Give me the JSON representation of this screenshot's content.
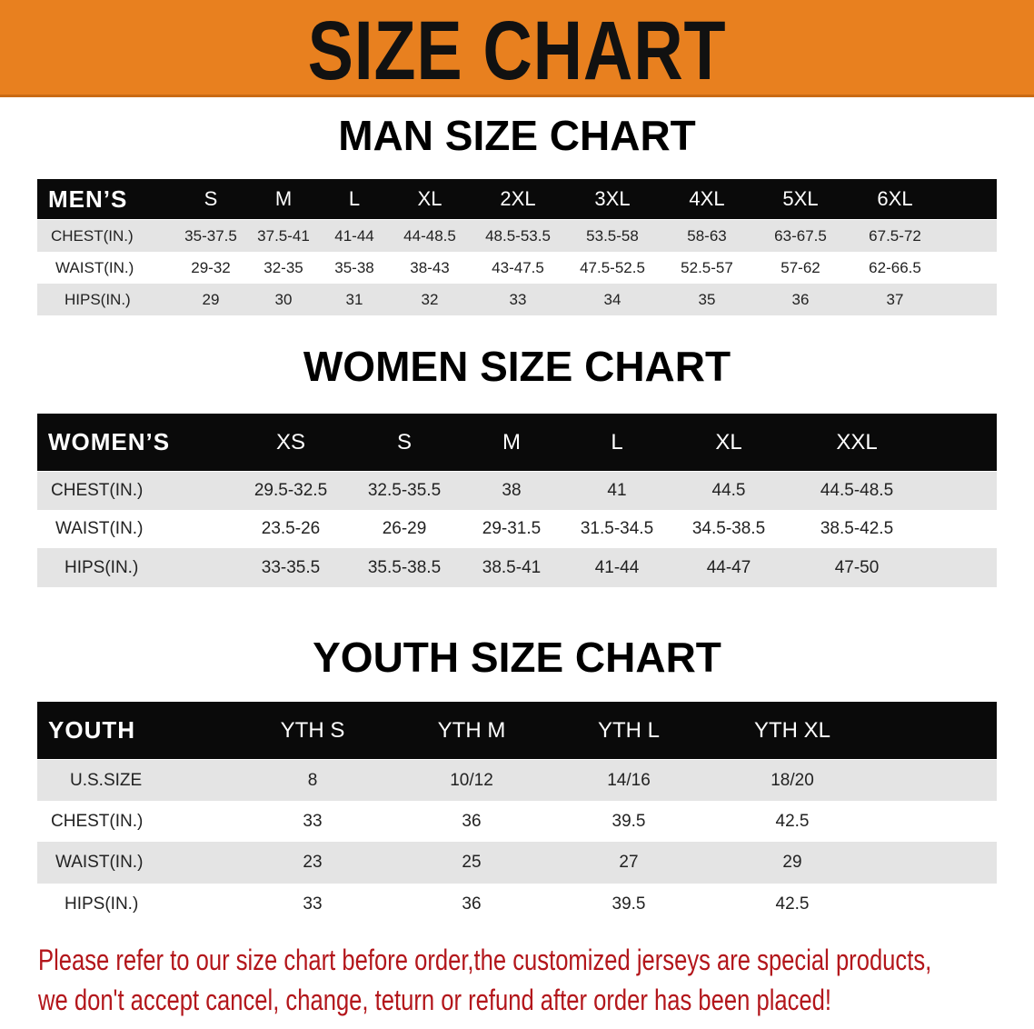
{
  "banner_title": "SIZE CHART",
  "accent_color": "#e8801f",
  "men": {
    "title": "MAN SIZE CHART",
    "corner": "MEN’S",
    "sizes": [
      "S",
      "M",
      "L",
      "XL",
      "2XL",
      "3XL",
      "4XL",
      "5XL",
      "6XL"
    ],
    "rows": [
      {
        "label": "CHEST(IN.)",
        "values": [
          "35-37.5",
          "37.5-41",
          "41-44",
          "44-48.5",
          "48.5-53.5",
          "53.5-58",
          "58-63",
          "63-67.5",
          "67.5-72"
        ]
      },
      {
        "label": "WAIST(IN.)",
        "values": [
          "29-32",
          "32-35",
          "35-38",
          "38-43",
          "43-47.5",
          "47.5-52.5",
          "52.5-57",
          "57-62",
          "62-66.5"
        ]
      },
      {
        "label": "HIPS(IN.)",
        "values": [
          "29",
          "30",
          "31",
          "32",
          "33",
          "34",
          "35",
          "36",
          "37"
        ]
      }
    ]
  },
  "women": {
    "title": "WOMEN SIZE CHART",
    "corner": "WOMEN’S",
    "sizes": [
      "XS",
      "S",
      "M",
      "L",
      "XL",
      "XXL"
    ],
    "rows": [
      {
        "label": "CHEST(IN.)",
        "values": [
          "29.5-32.5",
          "32.5-35.5",
          "38",
          "41",
          "44.5",
          "44.5-48.5"
        ]
      },
      {
        "label": "WAIST(IN.)",
        "values": [
          "23.5-26",
          "26-29",
          "29-31.5",
          "31.5-34.5",
          "34.5-38.5",
          "38.5-42.5"
        ]
      },
      {
        "label": "HIPS(IN.)",
        "values": [
          "33-35.5",
          "35.5-38.5",
          "38.5-41",
          "41-44",
          "44-47",
          "47-50"
        ]
      }
    ]
  },
  "youth": {
    "title": "YOUTH SIZE CHART",
    "corner": "YOUTH",
    "sizes": [
      "YTH S",
      "YTH M",
      "YTH L",
      "YTH XL"
    ],
    "rows": [
      {
        "label": "U.S.SIZE",
        "values": [
          "8",
          "10/12",
          "14/16",
          "18/20"
        ]
      },
      {
        "label": "CHEST(IN.)",
        "values": [
          "33",
          "36",
          "39.5",
          "42.5"
        ]
      },
      {
        "label": "WAIST(IN.)",
        "values": [
          "23",
          "25",
          "27",
          "29"
        ]
      },
      {
        "label": "HIPS(IN.)",
        "values": [
          "33",
          "36",
          "39.5",
          "42.5"
        ]
      }
    ]
  },
  "notice": {
    "line1": "Please refer to our size chart before order,the customized jerseys are special products,",
    "line2": "we don't accept cancel, change, teturn or refund after order has been placed!"
  }
}
